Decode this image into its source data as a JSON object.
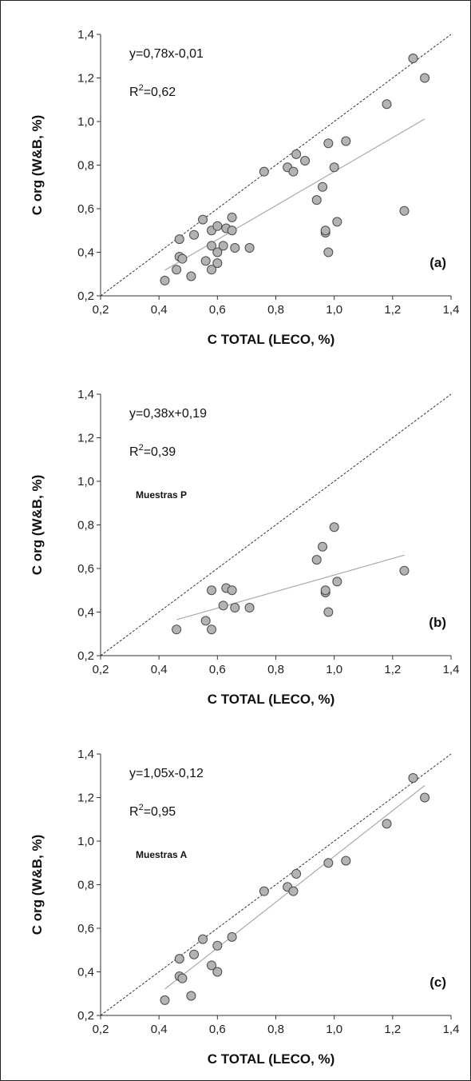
{
  "chart_data": [
    {
      "type": "scatter",
      "panel_label": "(a)",
      "xlabel": "C TOTAL (LECO, %)",
      "ylabel": "C org (W&B, %)",
      "xlim": [
        0.2,
        1.4
      ],
      "ylim": [
        0.2,
        1.4
      ],
      "xticks": [
        "0,2",
        "0,4",
        "0,6",
        "0,8",
        "1,0",
        "1,2",
        "1,4"
      ],
      "yticks": [
        "0,2",
        "0,4",
        "0,6",
        "0,8",
        "1,0",
        "1,2",
        "1,4"
      ],
      "equation": "y=0,78x-0,01",
      "r2_prefix": "R",
      "r2_sup": "2",
      "r2_value": "=0,62",
      "sample_label": "",
      "one_to_one_line": true,
      "fit": {
        "slope": 0.78,
        "intercept": -0.01,
        "x_range": [
          0.42,
          1.31
        ]
      },
      "points": [
        [
          0.42,
          0.27
        ],
        [
          0.46,
          0.32
        ],
        [
          0.47,
          0.46
        ],
        [
          0.47,
          0.38
        ],
        [
          0.48,
          0.37
        ],
        [
          0.51,
          0.29
        ],
        [
          0.52,
          0.48
        ],
        [
          0.55,
          0.55
        ],
        [
          0.56,
          0.36
        ],
        [
          0.58,
          0.5
        ],
        [
          0.58,
          0.43
        ],
        [
          0.58,
          0.32
        ],
        [
          0.6,
          0.52
        ],
        [
          0.6,
          0.4
        ],
        [
          0.6,
          0.35
        ],
        [
          0.62,
          0.43
        ],
        [
          0.63,
          0.51
        ],
        [
          0.65,
          0.56
        ],
        [
          0.65,
          0.5
        ],
        [
          0.66,
          0.42
        ],
        [
          0.71,
          0.42
        ],
        [
          0.76,
          0.77
        ],
        [
          0.84,
          0.79
        ],
        [
          0.86,
          0.77
        ],
        [
          0.87,
          0.85
        ],
        [
          0.9,
          0.82
        ],
        [
          0.94,
          0.64
        ],
        [
          0.96,
          0.7
        ],
        [
          0.97,
          0.49
        ],
        [
          0.97,
          0.5
        ],
        [
          0.98,
          0.9
        ],
        [
          0.98,
          0.4
        ],
        [
          1.0,
          0.79
        ],
        [
          1.01,
          0.54
        ],
        [
          1.04,
          0.91
        ],
        [
          1.18,
          1.08
        ],
        [
          1.24,
          0.59
        ],
        [
          1.27,
          1.29
        ],
        [
          1.31,
          1.2
        ]
      ]
    },
    {
      "type": "scatter",
      "panel_label": "(b)",
      "xlabel": "C TOTAL (LECO, %)",
      "ylabel": "C org (W&B, %)",
      "xlim": [
        0.2,
        1.4
      ],
      "ylim": [
        0.2,
        1.4
      ],
      "xticks": [
        "0,2",
        "0,4",
        "0,6",
        "0,8",
        "1,0",
        "1,2",
        "1,4"
      ],
      "yticks": [
        "0,2",
        "0,4",
        "0,6",
        "0,8",
        "1,0",
        "1,2",
        "1,4"
      ],
      "equation": "y=0,38x+0,19",
      "r2_prefix": "R",
      "r2_sup": "2",
      "r2_value": "=0,39",
      "sample_label": "Muestras P",
      "one_to_one_line": true,
      "fit": {
        "slope": 0.38,
        "intercept": 0.19,
        "x_range": [
          0.46,
          1.24
        ]
      },
      "points": [
        [
          0.46,
          0.32
        ],
        [
          0.56,
          0.36
        ],
        [
          0.58,
          0.5
        ],
        [
          0.58,
          0.32
        ],
        [
          0.62,
          0.43
        ],
        [
          0.63,
          0.51
        ],
        [
          0.65,
          0.5
        ],
        [
          0.66,
          0.42
        ],
        [
          0.71,
          0.42
        ],
        [
          0.94,
          0.64
        ],
        [
          0.96,
          0.7
        ],
        [
          0.97,
          0.49
        ],
        [
          0.97,
          0.5
        ],
        [
          0.98,
          0.4
        ],
        [
          1.0,
          0.79
        ],
        [
          1.01,
          0.54
        ],
        [
          1.24,
          0.59
        ]
      ]
    },
    {
      "type": "scatter",
      "panel_label": "(c)",
      "xlabel": "C TOTAL (LECO, %)",
      "ylabel": "C org (W&B, %)",
      "xlim": [
        0.2,
        1.4
      ],
      "ylim": [
        0.2,
        1.4
      ],
      "xticks": [
        "0,2",
        "0,4",
        "0,6",
        "0,8",
        "1,0",
        "1,2",
        "1,4"
      ],
      "yticks": [
        "0,2",
        "0,4",
        "0,6",
        "0,8",
        "1,0",
        "1,2",
        "1,4"
      ],
      "equation": "y=1,05x-0,12",
      "r2_prefix": "R",
      "r2_sup": "2",
      "r2_value": "=0,95",
      "sample_label": "Muestras A",
      "one_to_one_line": true,
      "fit": {
        "slope": 1.05,
        "intercept": -0.12,
        "x_range": [
          0.42,
          1.31
        ]
      },
      "points": [
        [
          0.42,
          0.27
        ],
        [
          0.47,
          0.46
        ],
        [
          0.47,
          0.38
        ],
        [
          0.48,
          0.37
        ],
        [
          0.51,
          0.29
        ],
        [
          0.52,
          0.48
        ],
        [
          0.55,
          0.55
        ],
        [
          0.58,
          0.43
        ],
        [
          0.6,
          0.52
        ],
        [
          0.6,
          0.4
        ],
        [
          0.65,
          0.56
        ],
        [
          0.76,
          0.77
        ],
        [
          0.84,
          0.79
        ],
        [
          0.86,
          0.77
        ],
        [
          0.87,
          0.85
        ],
        [
          0.98,
          0.9
        ],
        [
          1.04,
          0.91
        ],
        [
          1.18,
          1.08
        ],
        [
          1.27,
          1.29
        ],
        [
          1.31,
          1.2
        ]
      ]
    }
  ],
  "colors": {
    "marker_fill": "#b3b3b3",
    "marker_stroke": "#4a4a4a",
    "fit_line": "#aaaaaa",
    "reference_line": "#333333",
    "axis": "#333333"
  }
}
